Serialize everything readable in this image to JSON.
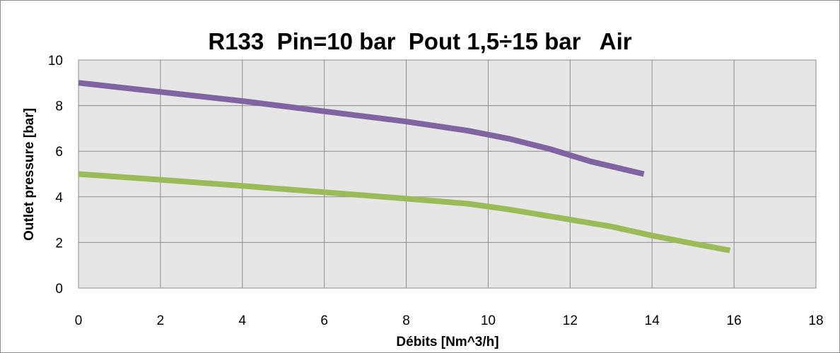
{
  "chart_data": {
    "type": "line",
    "title": "R133  Pin=10 bar  Pout 1,5÷15 bar   Air",
    "xlabel": "Débits [Nm^3/h]",
    "ylabel": "Outlet pressure [bar]",
    "xlim": [
      0,
      18
    ],
    "ylim": [
      0,
      10
    ],
    "xticks": [
      "0",
      "2",
      "4",
      "6",
      "8",
      "10",
      "12",
      "14",
      "16",
      "18"
    ],
    "yticks": [
      "0",
      "2",
      "4",
      "6",
      "8",
      "10"
    ],
    "grid": true,
    "legend": "none",
    "plot_background": "#e6e6e6",
    "series": [
      {
        "color": "#8064a2",
        "points": [
          [
            0,
            9.0
          ],
          [
            2,
            8.6
          ],
          [
            4,
            8.2
          ],
          [
            6,
            7.75
          ],
          [
            8,
            7.3
          ],
          [
            9.5,
            6.9
          ],
          [
            10.5,
            6.55
          ],
          [
            11.5,
            6.1
          ],
          [
            12.5,
            5.55
          ],
          [
            13.8,
            5.0
          ]
        ]
      },
      {
        "color": "#9bbb59",
        "points": [
          [
            0,
            5.0
          ],
          [
            2,
            4.75
          ],
          [
            4,
            4.48
          ],
          [
            6,
            4.2
          ],
          [
            8,
            3.92
          ],
          [
            9.5,
            3.7
          ],
          [
            10.5,
            3.45
          ],
          [
            12,
            3.0
          ],
          [
            13,
            2.7
          ],
          [
            14,
            2.3
          ],
          [
            15,
            1.95
          ],
          [
            15.9,
            1.65
          ]
        ]
      }
    ]
  }
}
